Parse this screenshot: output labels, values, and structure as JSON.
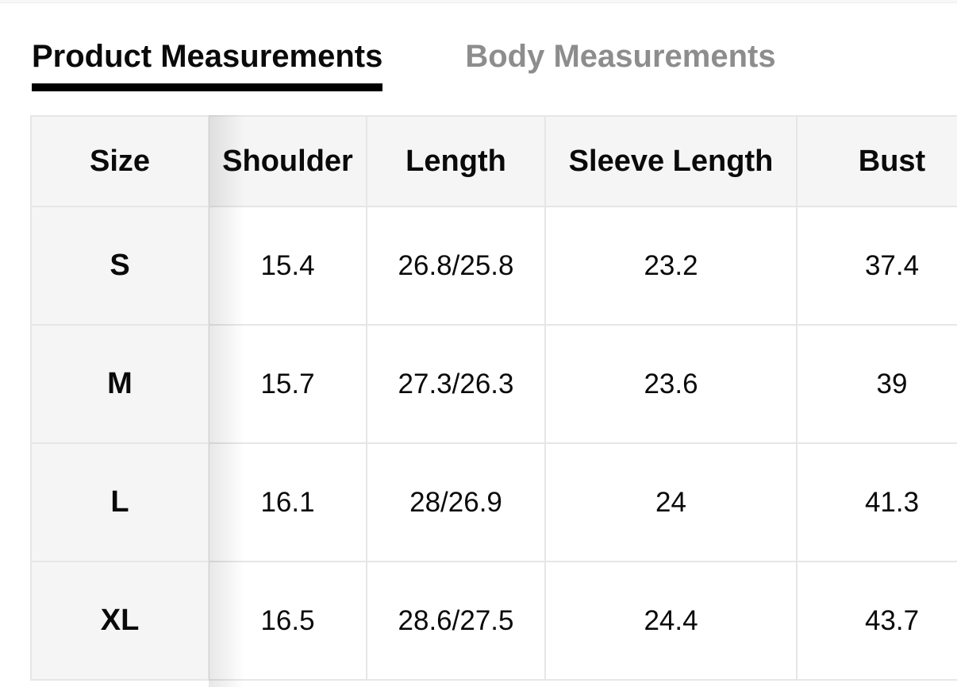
{
  "tabs": {
    "product": {
      "label": "Product Measurements",
      "active": true
    },
    "body": {
      "label": "Body Measurements",
      "active": false
    }
  },
  "size_chart": {
    "columns": [
      "Size",
      "Shoulder",
      "Length",
      "Sleeve Length",
      "Bust"
    ],
    "rows": [
      [
        "S",
        "15.4",
        "26.8/25.8",
        "23.2",
        "37.4"
      ],
      [
        "M",
        "15.7",
        "27.3/26.3",
        "23.6",
        "39"
      ],
      [
        "L",
        "16.1",
        "28/26.9",
        "24",
        "41.3"
      ],
      [
        "XL",
        "16.5",
        "28.6/27.5",
        "24.4",
        "43.7"
      ]
    ]
  },
  "colors": {
    "active_tab_text": "#0a0a0a",
    "inactive_tab_text": "#8d8d8d",
    "tab_underline": "#000000",
    "header_cell_bg": "#f5f5f5",
    "size_column_bg": "#f5f5f5",
    "cell_border": "#e6e6e6",
    "page_bg": "#ffffff"
  }
}
